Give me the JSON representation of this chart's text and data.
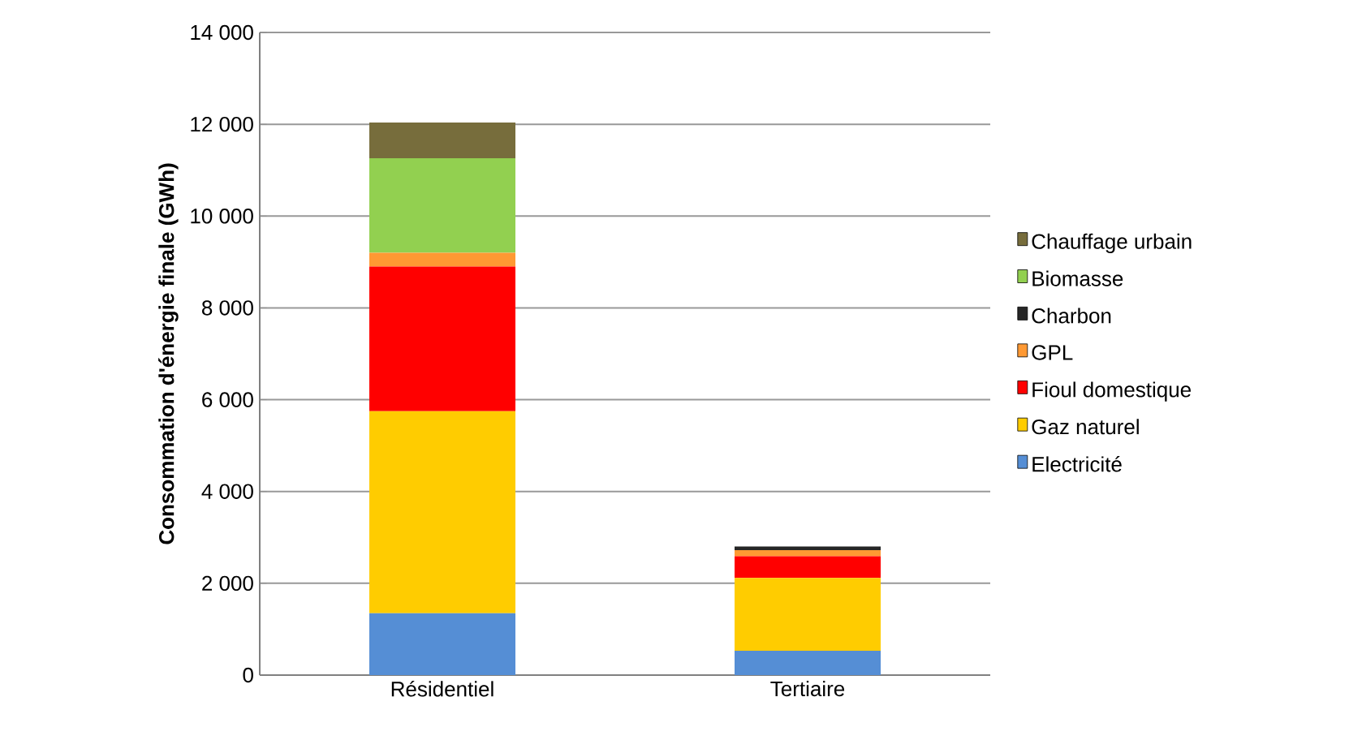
{
  "chart_data": {
    "type": "bar",
    "stacked": true,
    "ylabel": "Consommation d'énergie finale (GWh)",
    "categories": [
      "Résidentiel",
      "Tertiaire"
    ],
    "series": [
      {
        "name": "Electricité",
        "color": "#558ed5",
        "values": [
          1350,
          530
        ]
      },
      {
        "name": "Gaz naturel",
        "color": "#ffcc00",
        "values": [
          4400,
          1585
        ]
      },
      {
        "name": "Fioul domestique",
        "color": "#ff0000",
        "values": [
          3150,
          475
        ]
      },
      {
        "name": "GPL",
        "color": "#ff9933",
        "values": [
          300,
          130
        ]
      },
      {
        "name": "Charbon",
        "color": "#262626",
        "values": [
          0,
          80
        ]
      },
      {
        "name": "Biomasse",
        "color": "#92d050",
        "values": [
          2060,
          0
        ]
      },
      {
        "name": "Chauffage urbain",
        "color": "#776d3c",
        "values": [
          780,
          0
        ]
      }
    ],
    "ylim": [
      0,
      14000
    ],
    "yticks": [
      {
        "value": 0,
        "label": "0"
      },
      {
        "value": 2000,
        "label": "2 000"
      },
      {
        "value": 4000,
        "label": "4 000"
      },
      {
        "value": 6000,
        "label": "6 000"
      },
      {
        "value": 8000,
        "label": "8 000"
      },
      {
        "value": 10000,
        "label": "10 000"
      },
      {
        "value": 12000,
        "label": "12 000"
      },
      {
        "value": 14000,
        "label": "14 000"
      }
    ],
    "grid": "y",
    "legend": "right"
  }
}
